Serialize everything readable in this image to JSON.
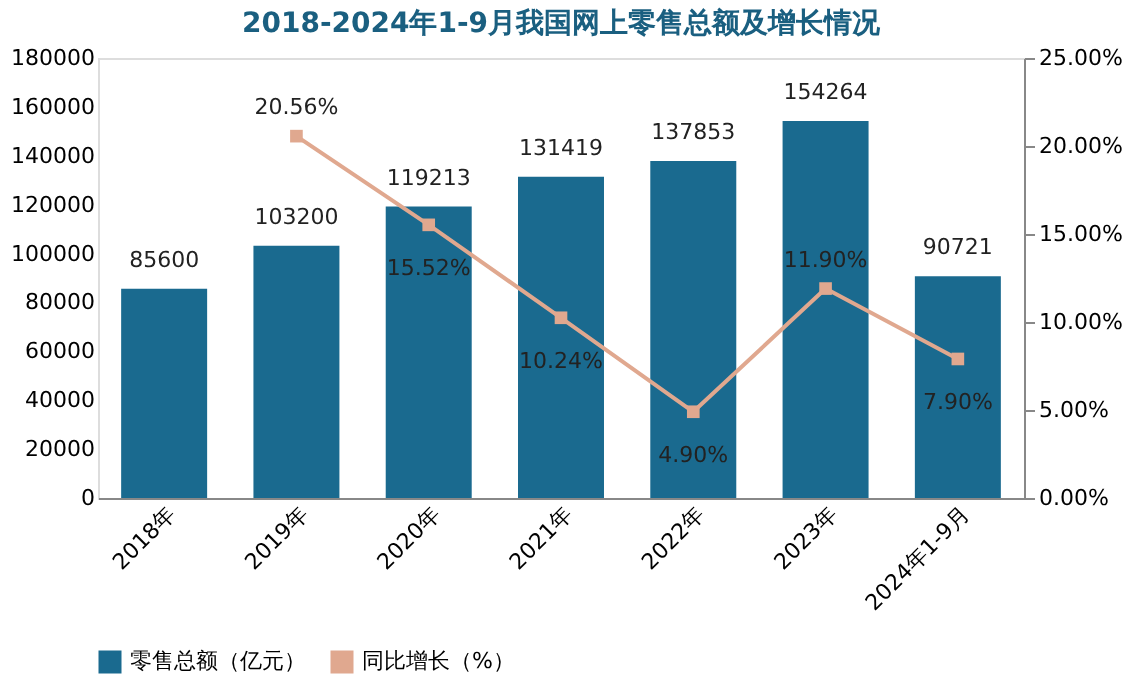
{
  "chart_data": {
    "type": "bar",
    "title": "2018-2024年1-9月我国网上零售总额及增长情况",
    "categories": [
      "2018年",
      "2019年",
      "2020年",
      "2021年",
      "2022年",
      "2023年",
      "2024年1-9月"
    ],
    "series": [
      {
        "name": "零售总额（亿元）",
        "color": "#1a6a8f",
        "values": [
          85600,
          103200,
          119213,
          131419,
          137853,
          154264,
          90721
        ]
      },
      {
        "name": "同比增长（%）",
        "type": "line",
        "axis": "y2",
        "color": "#e0a88f",
        "marker": "square",
        "values": [
          null,
          20.56,
          15.52,
          10.24,
          4.9,
          11.9,
          7.9
        ],
        "value_labels": [
          null,
          "20.56%",
          "15.52%",
          "10.24%",
          "4.90%",
          "11.90%",
          "7.90%"
        ]
      }
    ],
    "data_labels": true,
    "ylim": [
      0,
      180000
    ],
    "yticks": [
      0,
      20000,
      40000,
      60000,
      80000,
      100000,
      120000,
      140000,
      160000,
      180000
    ],
    "y2lim": [
      0,
      25
    ],
    "y2ticks": [
      {
        "value": 0,
        "label": "0.00%"
      },
      {
        "value": 5,
        "label": "5.00%"
      },
      {
        "value": 10,
        "label": "10.00%"
      },
      {
        "value": 15,
        "label": "15.00%"
      },
      {
        "value": 20,
        "label": "20.00%"
      },
      {
        "value": 25,
        "label": "25.00%"
      }
    ],
    "grid": false,
    "legend": "bottom"
  }
}
